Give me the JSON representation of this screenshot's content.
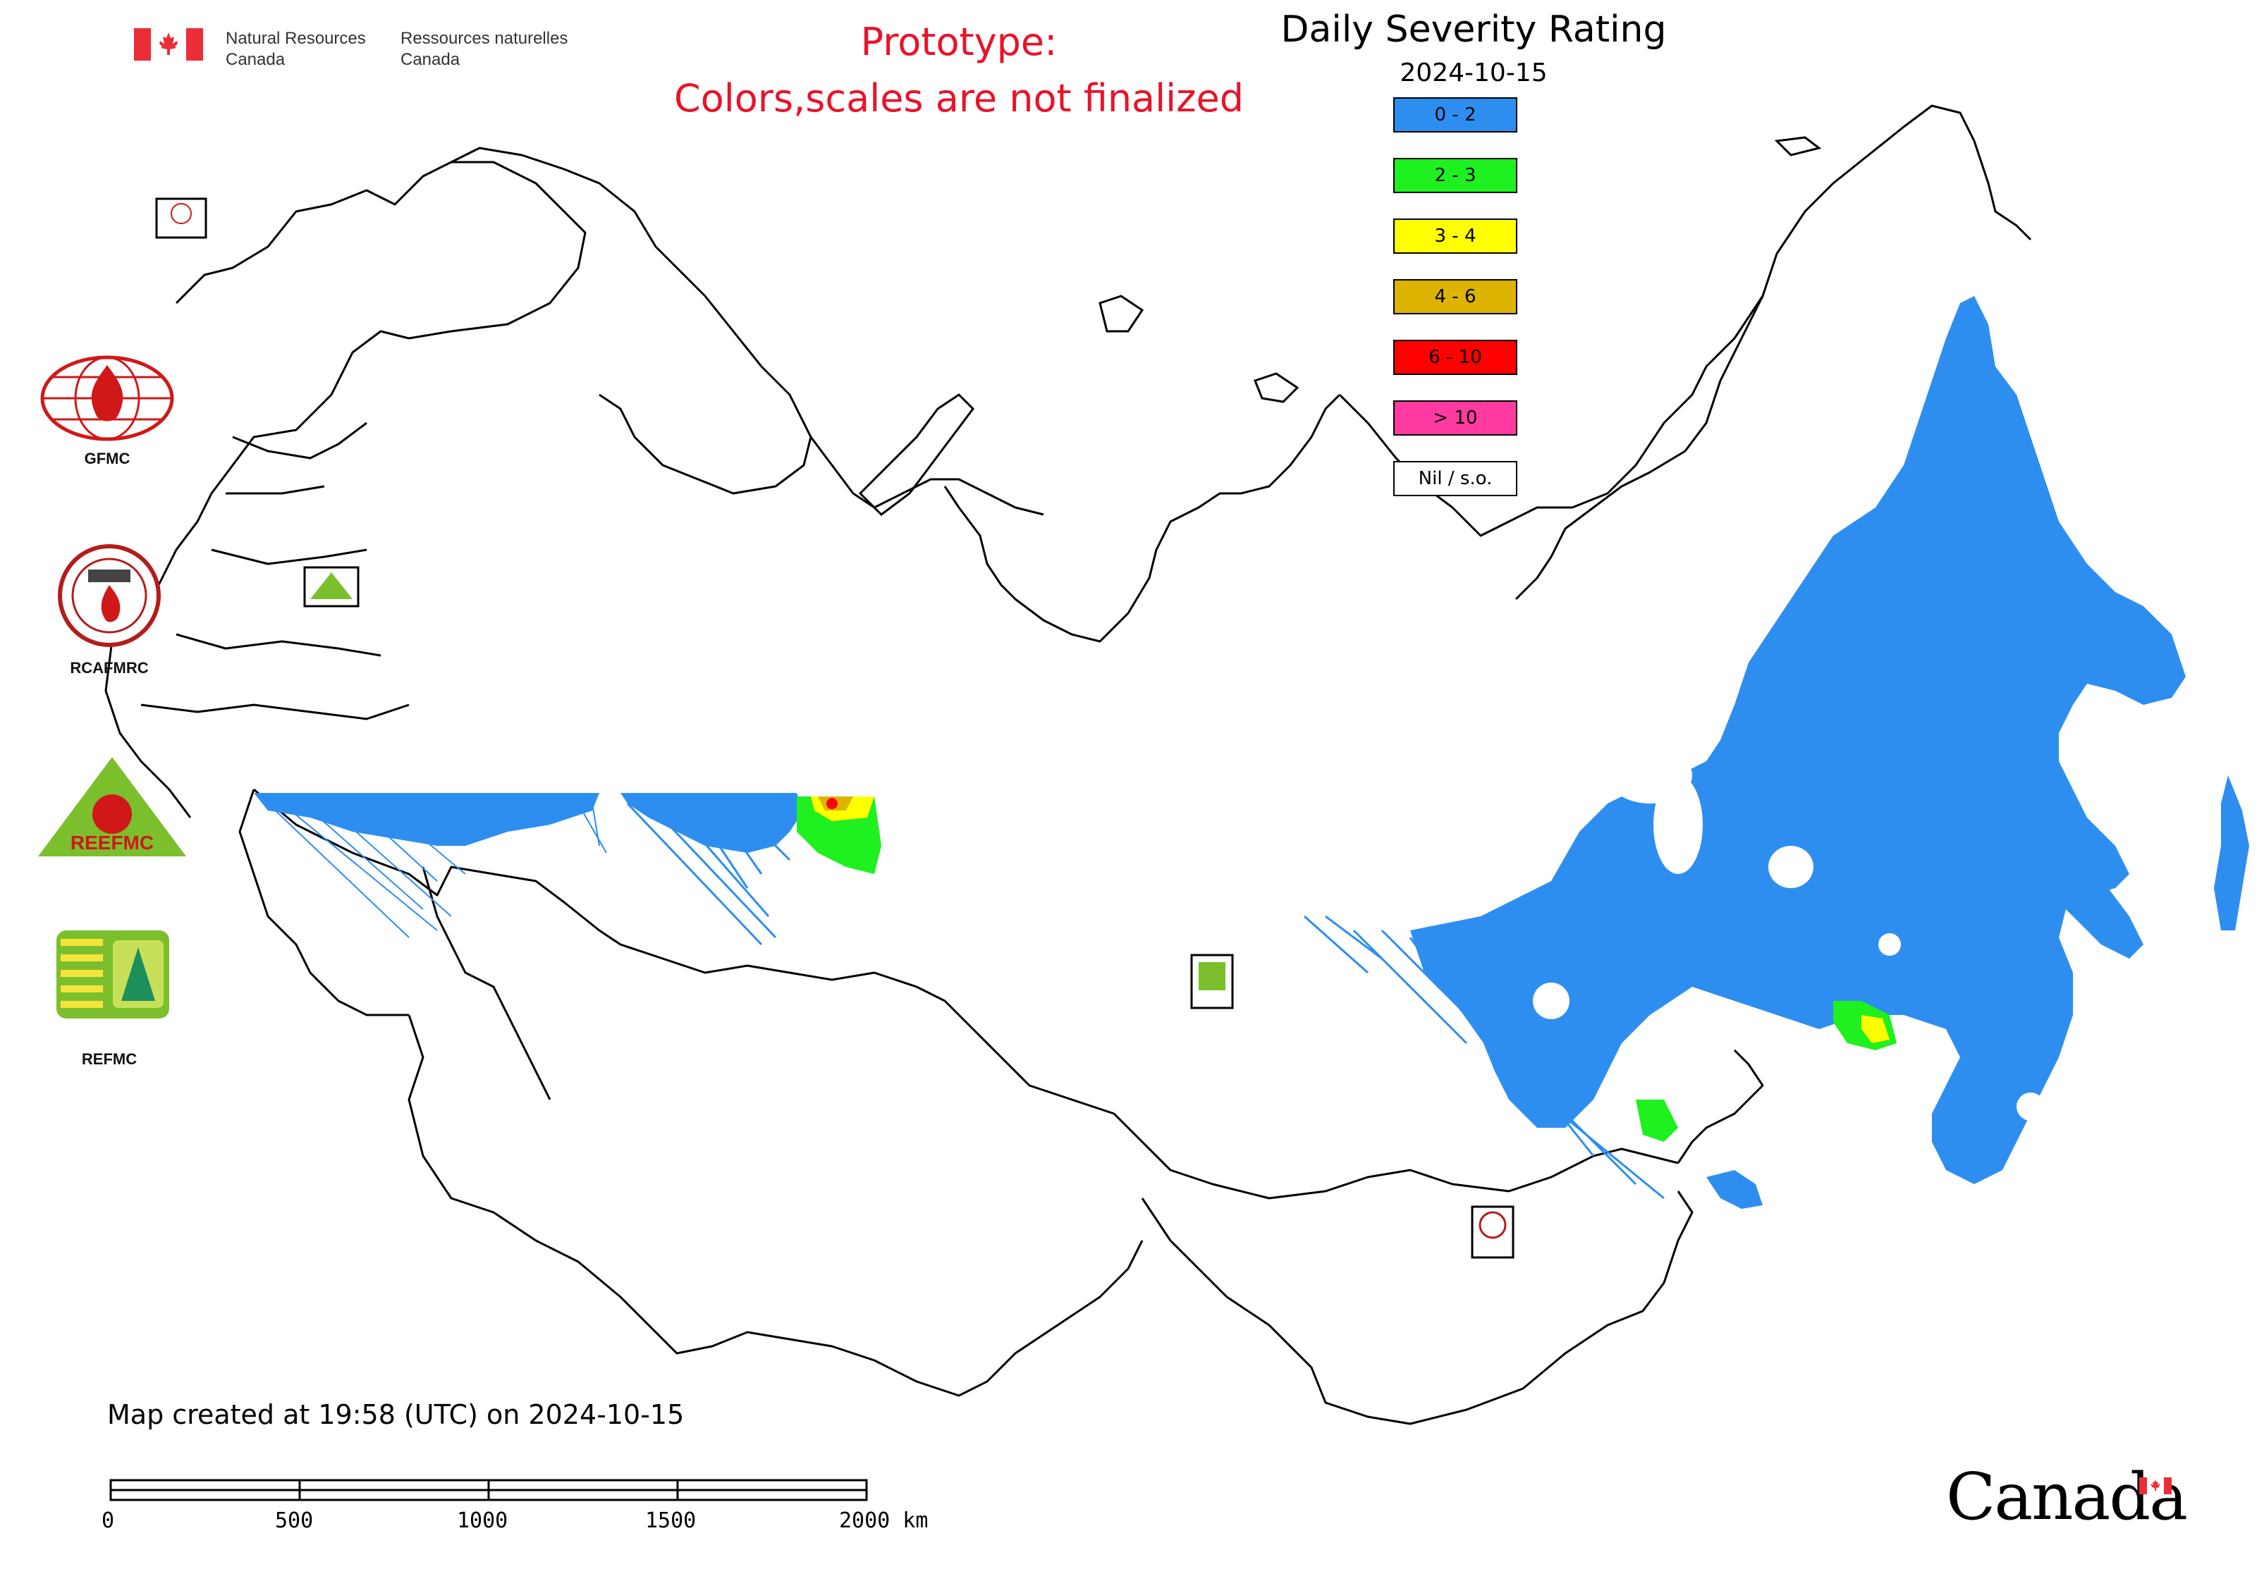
{
  "header": {
    "department_en": [
      "Natural Resources",
      "Canada"
    ],
    "department_fr": [
      "Ressources naturelles",
      "Canada"
    ],
    "prototype_lines": [
      "Prototype:",
      "Colors,scales are not finalized"
    ]
  },
  "legend": {
    "title": "Daily Severity Rating",
    "date": "2024-10-15",
    "items": [
      {
        "label": "0 - 2",
        "color": "#2d8ef0"
      },
      {
        "label": "2 - 3",
        "color": "#1ff01f"
      },
      {
        "label": "3 - 4",
        "color": "#ffff00"
      },
      {
        "label": "4 - 6",
        "color": "#dcb400"
      },
      {
        "label": "6 - 10",
        "color": "#ff0000"
      },
      {
        "label": "> 10",
        "color": "#ff3aa0"
      },
      {
        "label": "Nil / s.o.",
        "color": "#ffffff"
      }
    ]
  },
  "centers": {
    "gfmc": "GFMC",
    "rcafmrc": "RCAFMRC",
    "reefmc": "REEFMC",
    "refmc": "REFMC",
    "map_badges": {
      "gfmc_small": "GFMC",
      "reefmc_small": "REEFMC",
      "refmc_small": "REFMC",
      "rcafmrc_small": "RCAFMRC"
    }
  },
  "footer": {
    "created": "Map created at 19:58 (UTC) on 2024-10-15",
    "scale_labels": [
      "0",
      "500",
      "1000",
      "1500",
      "2000 km"
    ],
    "wordmark": "Canada"
  },
  "colors": {
    "severity_low": "#2d8ef0",
    "severity_moderate": "#1ff01f",
    "severity_high": "#ffff00",
    "severity_very_high": "#dcb400",
    "severity_extreme": "#ff0000",
    "prototype_text": "#e8132a",
    "border_line": "#000000"
  }
}
